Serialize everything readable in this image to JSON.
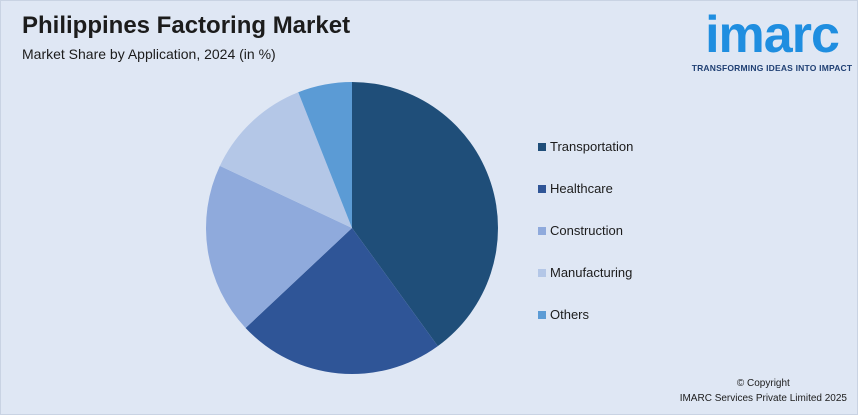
{
  "header": {
    "title": "Philippines Factoring Market",
    "subtitle": "Market Share by Application, 2024 (in %)"
  },
  "logo": {
    "word": "imarc",
    "tagline": "TRANSFORMING IDEAS INTO IMPACT",
    "color": "#1f8ee0"
  },
  "chart_data": {
    "type": "pie",
    "title": "Philippines Factoring Market",
    "subtitle": "Market Share by Application, 2024 (in %)",
    "legend_position": "right",
    "slices": [
      {
        "label": "Transportation",
        "value": 40,
        "color": "#1f4e79"
      },
      {
        "label": "Healthcare",
        "value": 23,
        "color": "#2f5597"
      },
      {
        "label": "Construction",
        "value": 19,
        "color": "#8faadc"
      },
      {
        "label": "Manufacturing",
        "value": 12,
        "color": "#b4c7e7"
      },
      {
        "label": "Others",
        "value": 6,
        "color": "#5b9bd5"
      }
    ]
  },
  "footer": {
    "copyright_line1": "© Copyright",
    "copyright_line2": "IMARC Services Private Limited 2025"
  }
}
